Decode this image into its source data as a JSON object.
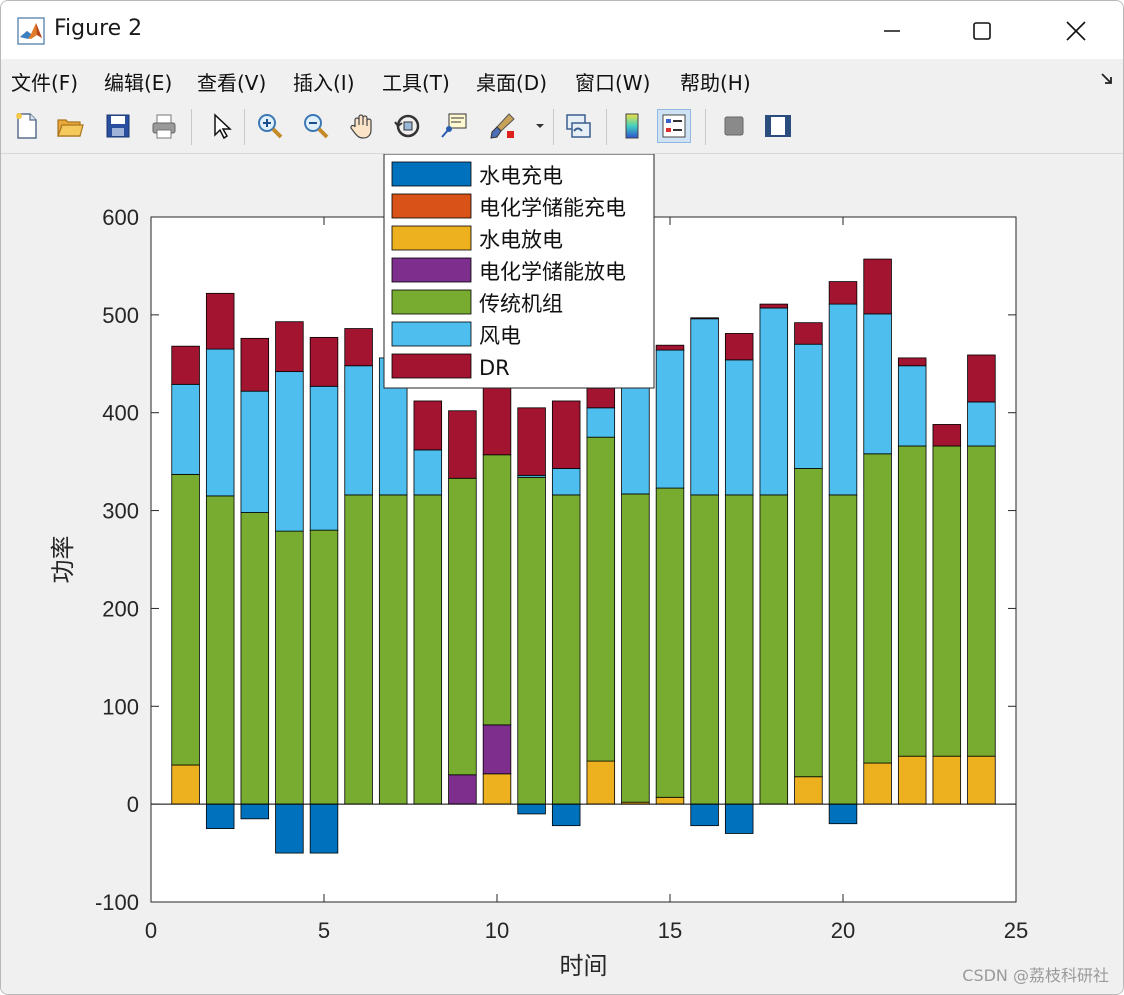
{
  "window": {
    "title": "Figure 2"
  },
  "menu": [
    {
      "label": "文件(F)",
      "name": "menu-file"
    },
    {
      "label": "编辑(E)",
      "name": "menu-edit"
    },
    {
      "label": "查看(V)",
      "name": "menu-view"
    },
    {
      "label": "插入(I)",
      "name": "menu-insert"
    },
    {
      "label": "工具(T)",
      "name": "menu-tools"
    },
    {
      "label": "桌面(D)",
      "name": "menu-desktop"
    },
    {
      "label": "窗口(W)",
      "name": "menu-window"
    },
    {
      "label": "帮助(H)",
      "name": "menu-help"
    }
  ],
  "toolbar": {
    "icons": [
      "new-figure-icon",
      "open-file-icon",
      "save-icon",
      "print-icon",
      "pointer-icon",
      "zoom-in-icon",
      "zoom-out-icon",
      "pan-hand-icon",
      "rotate-3d-icon",
      "data-cursor-icon",
      "brush-icon",
      "link-plot-icon",
      "colorbar-icon",
      "legend-icon",
      "hide-plot-tools-icon",
      "show-plot-tools-icon"
    ]
  },
  "watermark": "CSDN @荔枝科研社",
  "chart_data": {
    "type": "bar",
    "stacked": true,
    "title": "",
    "xlabel": "时间",
    "ylabel": "功率",
    "xlim": [
      0,
      25
    ],
    "ylim": [
      -100,
      600
    ],
    "xticks": [
      0,
      5,
      10,
      15,
      20,
      25
    ],
    "yticks": [
      -100,
      0,
      100,
      200,
      300,
      400,
      500,
      600
    ],
    "grid": false,
    "legend_position": "top-center",
    "x": [
      1,
      2,
      3,
      4,
      5,
      6,
      7,
      8,
      9,
      10,
      11,
      12,
      13,
      14,
      15,
      16,
      17,
      18,
      19,
      20,
      21,
      22,
      23,
      24
    ],
    "series": [
      {
        "name": "水电充电",
        "color": "#0072BD",
        "values": [
          0,
          -25,
          -15,
          -50,
          -50,
          0,
          0,
          0,
          0,
          0,
          -10,
          -22,
          0,
          0,
          0,
          -22,
          -30,
          0,
          0,
          -20,
          0,
          0,
          0,
          0
        ]
      },
      {
        "name": "电化学储能充电",
        "color": "#D95319",
        "values": [
          0,
          0,
          0,
          0,
          0,
          0,
          0,
          0,
          0,
          0,
          0,
          0,
          0,
          0,
          0,
          0,
          0,
          0,
          0,
          0,
          0,
          0,
          0,
          0
        ]
      },
      {
        "name": "水电放电",
        "color": "#EDB120",
        "values": [
          40,
          0,
          0,
          0,
          0,
          0,
          0,
          0,
          0,
          31,
          0,
          0,
          44,
          2,
          7,
          0,
          0,
          0,
          28,
          0,
          42,
          49,
          49,
          49
        ]
      },
      {
        "name": "电化学储能放电",
        "color": "#7E2F8E",
        "values": [
          0,
          0,
          0,
          0,
          0,
          0,
          0,
          0,
          30,
          50,
          0,
          0,
          0,
          0,
          0,
          0,
          0,
          0,
          0,
          0,
          0,
          0,
          0,
          0
        ]
      },
      {
        "name": "传统机组",
        "color": "#77AC30",
        "values": [
          297,
          315,
          298,
          279,
          280,
          316,
          316,
          316,
          303,
          276,
          334,
          316,
          331,
          315,
          316,
          316,
          316,
          316,
          315,
          316,
          316,
          317,
          317,
          317
        ]
      },
      {
        "name": "风电",
        "color": "#4DBEEE",
        "values": [
          92,
          150,
          124,
          163,
          147,
          132,
          140,
          46,
          0,
          0,
          2,
          27,
          30,
          122,
          141,
          180,
          138,
          191,
          127,
          195,
          143,
          82,
          0,
          45
        ]
      },
      {
        "name": "DR",
        "color": "#A2142F",
        "values": [
          39,
          57,
          54,
          51,
          50,
          38,
          0,
          50,
          69,
          124,
          69,
          69,
          20,
          30,
          5,
          1,
          27,
          4,
          22,
          23,
          56,
          8,
          22,
          48
        ]
      }
    ]
  }
}
